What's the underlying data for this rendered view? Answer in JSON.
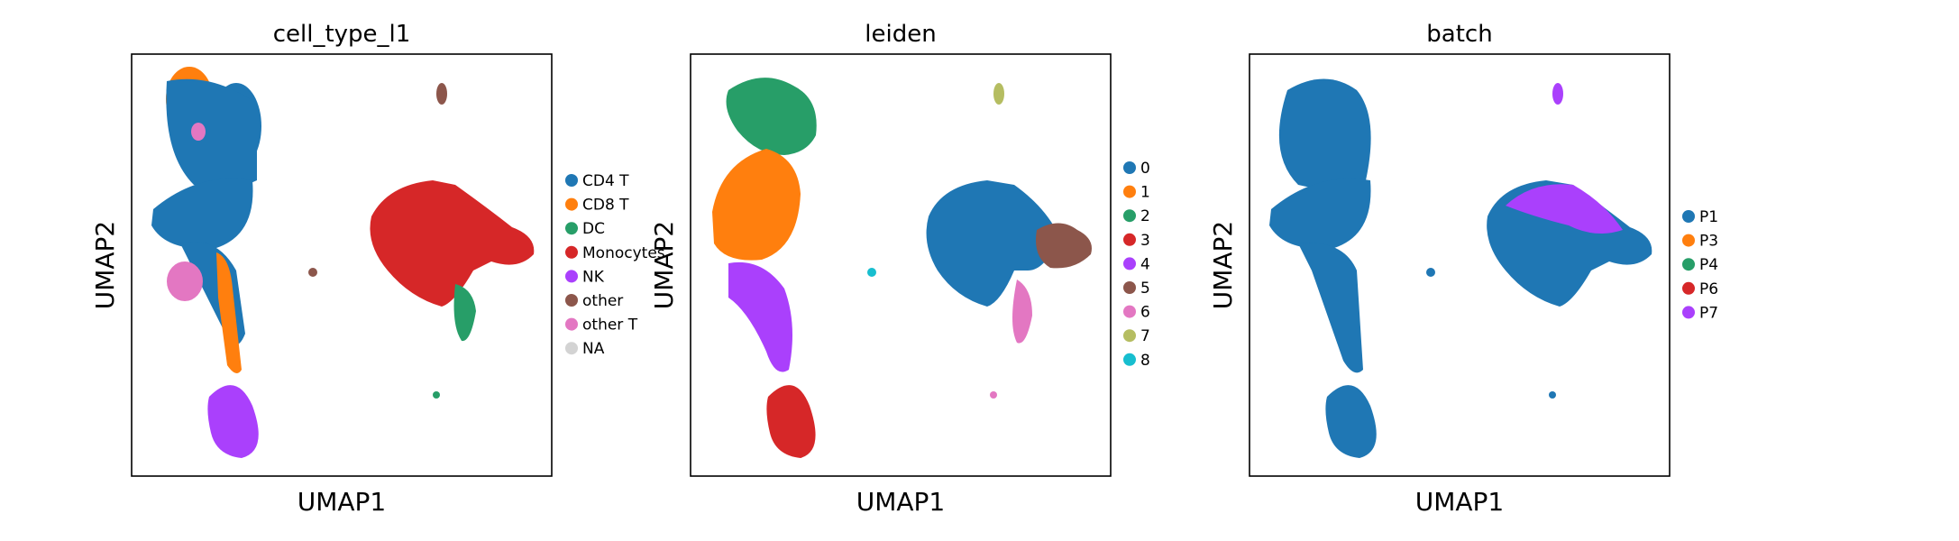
{
  "chart_data": [
    {
      "type": "scatter",
      "title": "cell_type_l1",
      "xlabel": "UMAP1",
      "ylabel": "UMAP2",
      "xticks": false,
      "yticks": false,
      "legend_placement": "right",
      "series": [
        {
          "name": "CD4 T",
          "color": "#1f77b4"
        },
        {
          "name": "CD8 T",
          "color": "#ff7f0e"
        },
        {
          "name": "DC",
          "color": "#279e68"
        },
        {
          "name": "Monocytes",
          "color": "#d62728"
        },
        {
          "name": "NK",
          "color": "#aa40fc"
        },
        {
          "name": "other",
          "color": "#8c564b"
        },
        {
          "name": "other T",
          "color": "#e377c2"
        },
        {
          "name": "NA",
          "color": "#d3d3d3"
        }
      ]
    },
    {
      "type": "scatter",
      "title": "leiden",
      "xlabel": "UMAP1",
      "ylabel": "UMAP2",
      "xticks": false,
      "yticks": false,
      "legend_placement": "right",
      "series": [
        {
          "name": "0",
          "color": "#1f77b4"
        },
        {
          "name": "1",
          "color": "#ff7f0e"
        },
        {
          "name": "2",
          "color": "#279e68"
        },
        {
          "name": "3",
          "color": "#d62728"
        },
        {
          "name": "4",
          "color": "#aa40fc"
        },
        {
          "name": "5",
          "color": "#8c564b"
        },
        {
          "name": "6",
          "color": "#e377c2"
        },
        {
          "name": "7",
          "color": "#b5bd61"
        },
        {
          "name": "8",
          "color": "#17becf"
        }
      ]
    },
    {
      "type": "scatter",
      "title": "batch",
      "xlabel": "UMAP1",
      "ylabel": "UMAP2",
      "xticks": false,
      "yticks": false,
      "legend_placement": "right",
      "series": [
        {
          "name": "P1",
          "color": "#1f77b4"
        },
        {
          "name": "P3",
          "color": "#ff7f0e"
        },
        {
          "name": "P4",
          "color": "#279e68"
        },
        {
          "name": "P6",
          "color": "#d62728"
        },
        {
          "name": "P7",
          "color": "#aa40fc"
        }
      ]
    }
  ]
}
